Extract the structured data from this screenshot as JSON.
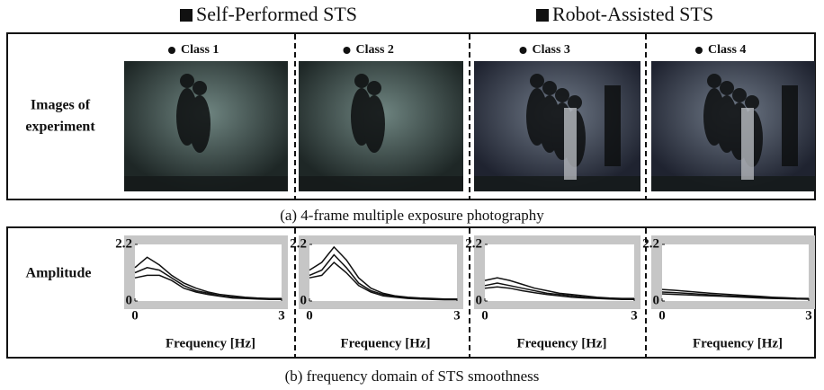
{
  "legend": [
    "Self-Performed STS",
    "Robot-Assisted STS"
  ],
  "panel_a": {
    "row_label": [
      "Images of",
      "experiment"
    ],
    "caption": "(a) 4-frame multiple exposure photography",
    "classes": [
      "Class 1",
      "Class 2",
      "Class 3",
      "Class 4"
    ]
  },
  "panel_b": {
    "row_label": "Amplitude",
    "caption": "(b) frequency domain of STS smoothness",
    "plots": [
      {
        "xlabel": "Frequency [Hz]",
        "xlim": [
          0,
          3
        ],
        "ylim": [
          0,
          2.2
        ],
        "xticks": [
          0,
          3
        ],
        "yticks": [
          0,
          2.2
        ],
        "x": [
          0,
          0.25,
          0.5,
          0.75,
          1,
          1.25,
          1.5,
          1.75,
          2,
          2.25,
          2.5,
          2.75,
          3
        ],
        "curves": [
          [
            1.3,
            1.7,
            1.4,
            1.0,
            0.7,
            0.5,
            0.35,
            0.25,
            0.2,
            0.15,
            0.12,
            0.1,
            0.1
          ],
          [
            1.1,
            1.3,
            1.2,
            0.9,
            0.6,
            0.4,
            0.3,
            0.2,
            0.15,
            0.12,
            0.1,
            0.08,
            0.08
          ],
          [
            0.9,
            1.0,
            1.0,
            0.8,
            0.5,
            0.35,
            0.25,
            0.18,
            0.12,
            0.1,
            0.08,
            0.06,
            0.06
          ]
        ]
      },
      {
        "xlabel": "Frequency [Hz]",
        "xlim": [
          0,
          3
        ],
        "ylim": [
          0,
          2.2
        ],
        "xticks": [
          0,
          3
        ],
        "yticks": [
          0,
          2.2
        ],
        "x": [
          0,
          0.25,
          0.5,
          0.75,
          1,
          1.25,
          1.5,
          1.75,
          2,
          2.25,
          2.5,
          2.75,
          3
        ],
        "curves": [
          [
            1.2,
            1.5,
            2.1,
            1.6,
            0.9,
            0.5,
            0.3,
            0.2,
            0.15,
            0.12,
            0.1,
            0.08,
            0.08
          ],
          [
            1.0,
            1.2,
            1.8,
            1.3,
            0.7,
            0.4,
            0.25,
            0.18,
            0.12,
            0.1,
            0.08,
            0.06,
            0.06
          ],
          [
            0.9,
            1.0,
            1.5,
            1.1,
            0.6,
            0.35,
            0.2,
            0.15,
            0.1,
            0.08,
            0.06,
            0.05,
            0.05
          ]
        ]
      },
      {
        "xlabel": "Frequency [Hz]",
        "xlim": [
          0,
          3
        ],
        "ylim": [
          0,
          2.2
        ],
        "xticks": [
          0,
          3
        ],
        "yticks": [
          0,
          2.2
        ],
        "x": [
          0,
          0.25,
          0.5,
          0.75,
          1,
          1.25,
          1.5,
          1.75,
          2,
          2.25,
          2.5,
          2.75,
          3
        ],
        "curves": [
          [
            0.8,
            0.9,
            0.8,
            0.65,
            0.5,
            0.4,
            0.3,
            0.25,
            0.2,
            0.15,
            0.12,
            0.1,
            0.1
          ],
          [
            0.6,
            0.7,
            0.6,
            0.5,
            0.4,
            0.3,
            0.25,
            0.2,
            0.15,
            0.12,
            0.1,
            0.08,
            0.08
          ],
          [
            0.5,
            0.55,
            0.5,
            0.4,
            0.32,
            0.25,
            0.2,
            0.15,
            0.12,
            0.1,
            0.08,
            0.06,
            0.06
          ]
        ]
      },
      {
        "xlabel": "Frequency [Hz]",
        "xlim": [
          0,
          3
        ],
        "ylim": [
          0,
          2.2
        ],
        "xticks": [
          0,
          3
        ],
        "yticks": [
          0,
          2.2
        ],
        "x": [
          0,
          0.25,
          0.5,
          0.75,
          1,
          1.25,
          1.5,
          1.75,
          2,
          2.25,
          2.5,
          2.75,
          3
        ],
        "curves": [
          [
            0.45,
            0.42,
            0.38,
            0.34,
            0.3,
            0.27,
            0.24,
            0.21,
            0.18,
            0.15,
            0.13,
            0.11,
            0.1
          ],
          [
            0.35,
            0.33,
            0.3,
            0.27,
            0.24,
            0.21,
            0.19,
            0.17,
            0.15,
            0.13,
            0.11,
            0.09,
            0.08
          ],
          [
            0.28,
            0.26,
            0.24,
            0.22,
            0.2,
            0.18,
            0.16,
            0.14,
            0.12,
            0.1,
            0.09,
            0.08,
            0.07
          ]
        ]
      }
    ]
  }
}
